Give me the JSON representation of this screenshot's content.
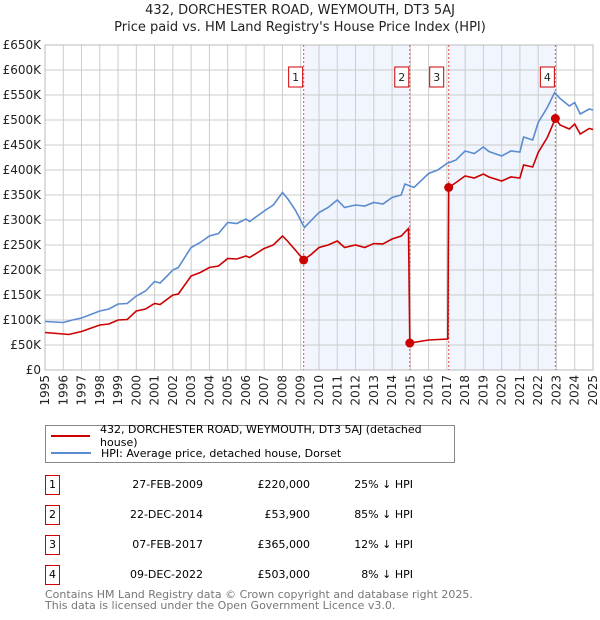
{
  "chart_data": {
    "type": "line",
    "title": "432, DORCHESTER ROAD, WEYMOUTH, DT3 5AJ",
    "subtitle": "Price paid vs. HM Land Registry's House Price Index (HPI)",
    "xlim": [
      1995,
      2025
    ],
    "ylim": [
      0,
      650000
    ],
    "y_ticks": [
      {
        "v": 0,
        "label": "£0"
      },
      {
        "v": 50000,
        "label": "£50K"
      },
      {
        "v": 100000,
        "label": "£100K"
      },
      {
        "v": 150000,
        "label": "£150K"
      },
      {
        "v": 200000,
        "label": "£200K"
      },
      {
        "v": 250000,
        "label": "£250K"
      },
      {
        "v": 300000,
        "label": "£300K"
      },
      {
        "v": 350000,
        "label": "£350K"
      },
      {
        "v": 400000,
        "label": "£400K"
      },
      {
        "v": 450000,
        "label": "£450K"
      },
      {
        "v": 500000,
        "label": "£500K"
      },
      {
        "v": 550000,
        "label": "£550K"
      },
      {
        "v": 600000,
        "label": "£600K"
      },
      {
        "v": 650000,
        "label": "£650K"
      }
    ],
    "x_ticks": [
      "1995",
      "1996",
      "1997",
      "1998",
      "1999",
      "2000",
      "2001",
      "2002",
      "2003",
      "2004",
      "2005",
      "2006",
      "2007",
      "2008",
      "2009",
      "2010",
      "2011",
      "2012",
      "2013",
      "2014",
      "2015",
      "2016",
      "2017",
      "2018",
      "2019",
      "2020",
      "2021",
      "2022",
      "2023",
      "2024",
      "2025"
    ],
    "grid": true,
    "legend_placement": "below",
    "series": [
      {
        "name": "432, DORCHESTER ROAD, WEYMOUTH, DT3 5AJ (detached house)",
        "color": "#cc0000",
        "x": [
          1995,
          1996,
          1996.3,
          1997,
          1998,
          1998.5,
          1999,
          1999.5,
          2000,
          2000.5,
          2001,
          2001.3,
          2002,
          2002.3,
          2003,
          2003.5,
          2004,
          2004.5,
          2005,
          2005.5,
          2006,
          2006.2,
          2007,
          2007.5,
          2008,
          2008.3,
          2008.7,
          2009.16,
          2009.6,
          2010,
          2010.5,
          2011,
          2011.4,
          2012,
          2012.5,
          2013,
          2013.5,
          2014,
          2014.5,
          2014.9,
          2014.97,
          2015.5,
          2016,
          2017.05,
          2017.1,
          2017.5,
          2018,
          2018.5,
          2019,
          2019.3,
          2020,
          2020.5,
          2021,
          2021.2,
          2021.7,
          2022,
          2022.5,
          2022.94,
          2023.2,
          2023.7,
          2024,
          2024.3,
          2024.8,
          2025
        ],
        "y": [
          75000,
          72000,
          71000,
          77000,
          90000,
          92000,
          100000,
          101000,
          118000,
          122000,
          133000,
          131000,
          150000,
          152000,
          188000,
          195000,
          205000,
          208000,
          223000,
          222000,
          228000,
          225000,
          243000,
          250000,
          268000,
          257000,
          240000,
          220000,
          232000,
          245000,
          250000,
          258000,
          245000,
          250000,
          245000,
          253000,
          252000,
          262000,
          268000,
          283000,
          53900,
          57000,
          60000,
          62000,
          365000,
          375000,
          388000,
          384000,
          392000,
          386000,
          378000,
          386000,
          384000,
          410000,
          406000,
          435000,
          465000,
          503000,
          490000,
          482000,
          492000,
          472000,
          483000,
          481000
        ]
      },
      {
        "name": "HPI: Average price, detached house, Dorset",
        "color": "#5b8bd0",
        "x": [
          1995,
          1996,
          1996.5,
          1997,
          1998,
          1998.5,
          1999,
          1999.5,
          2000,
          2000.5,
          2001,
          2001.3,
          2001.6,
          2002,
          2002.3,
          2003,
          2003.5,
          2004,
          2004.5,
          2005,
          2005.5,
          2006,
          2006.2,
          2007,
          2007.5,
          2008,
          2008.3,
          2008.7,
          2009.2,
          2009.6,
          2010,
          2010.5,
          2011,
          2011.4,
          2012,
          2012.5,
          2013,
          2013.5,
          2014,
          2014.5,
          2014.7,
          2015.2,
          2016,
          2016.5,
          2017,
          2017.5,
          2018,
          2018.5,
          2019,
          2019.3,
          2020,
          2020.5,
          2021,
          2021.2,
          2021.7,
          2022,
          2022.5,
          2022.9,
          2023.2,
          2023.7,
          2024,
          2024.3,
          2024.8,
          2025
        ],
        "y": [
          97000,
          95000,
          100000,
          104000,
          118000,
          122000,
          132000,
          133000,
          148000,
          158000,
          177000,
          174000,
          185000,
          200000,
          205000,
          245000,
          255000,
          268000,
          273000,
          295000,
          293000,
          302000,
          297000,
          318000,
          330000,
          355000,
          342000,
          320000,
          285000,
          300000,
          315000,
          325000,
          340000,
          325000,
          330000,
          328000,
          335000,
          332000,
          345000,
          350000,
          372000,
          365000,
          393000,
          400000,
          413000,
          420000,
          438000,
          433000,
          446000,
          437000,
          428000,
          438000,
          436000,
          466000,
          460000,
          495000,
          525000,
          555000,
          543000,
          528000,
          535000,
          512000,
          522000,
          520000
        ]
      }
    ],
    "shaded_periods": [
      [
        2009.16,
        2014.97
      ],
      [
        2017.1,
        2022.94
      ]
    ],
    "annotations": [
      {
        "label": "1",
        "x": 2009.16,
        "y": 220000
      },
      {
        "label": "2",
        "x": 2014.97,
        "y": 53900
      },
      {
        "label": "3",
        "x": 2017.1,
        "y": 365000
      },
      {
        "label": "4",
        "x": 2022.94,
        "y": 503000
      }
    ]
  },
  "legend": {
    "items": [
      "432, DORCHESTER ROAD, WEYMOUTH, DT3 5AJ (detached house)",
      "HPI: Average price, detached house, Dorset"
    ]
  },
  "transactions": [
    {
      "num": "1",
      "date": "27-FEB-2009",
      "price": "£220,000",
      "pct": "25% ↓ HPI"
    },
    {
      "num": "2",
      "date": "22-DEC-2014",
      "price": "£53,900",
      "pct": "85% ↓ HPI"
    },
    {
      "num": "3",
      "date": "07-FEB-2017",
      "price": "£365,000",
      "pct": "12% ↓ HPI"
    },
    {
      "num": "4",
      "date": "09-DEC-2022",
      "price": "£503,000",
      "pct": "8% ↓ HPI"
    }
  ],
  "footer": {
    "line1": "Contains HM Land Registry data © Crown copyright and database right 2025.",
    "line2": "This data is licensed under the Open Government Licence v3.0."
  }
}
